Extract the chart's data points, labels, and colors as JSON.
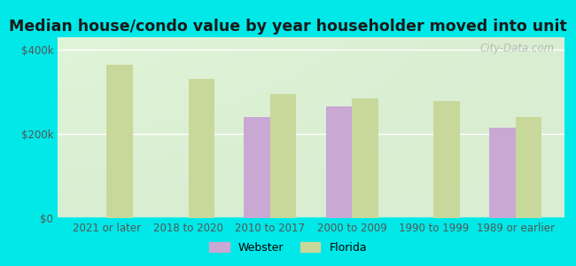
{
  "title": "Median house/condo value by year householder moved into unit",
  "categories": [
    "2021 or later",
    "2018 to 2020",
    "2010 to 2017",
    "2000 to 2009",
    "1990 to 1999",
    "1989 or earlier"
  ],
  "webster_values": [
    null,
    null,
    240000,
    265000,
    null,
    215000
  ],
  "florida_values": [
    365000,
    330000,
    295000,
    285000,
    278000,
    240000
  ],
  "webster_color": "#c9a8d4",
  "florida_color": "#c8d89a",
  "background_color": "#00e8e8",
  "plot_bg_color": "#edf5e0",
  "yticks": [
    0,
    200000,
    400000
  ],
  "ytick_labels": [
    "$0",
    "$200k",
    "$400k"
  ],
  "ylim": [
    0,
    430000
  ],
  "bar_width": 0.32,
  "legend_labels": [
    "Webster",
    "Florida"
  ],
  "watermark_text": "City-Data.com",
  "title_fontsize": 12.5,
  "tick_fontsize": 8.5,
  "title_color": "#1a1a1a"
}
